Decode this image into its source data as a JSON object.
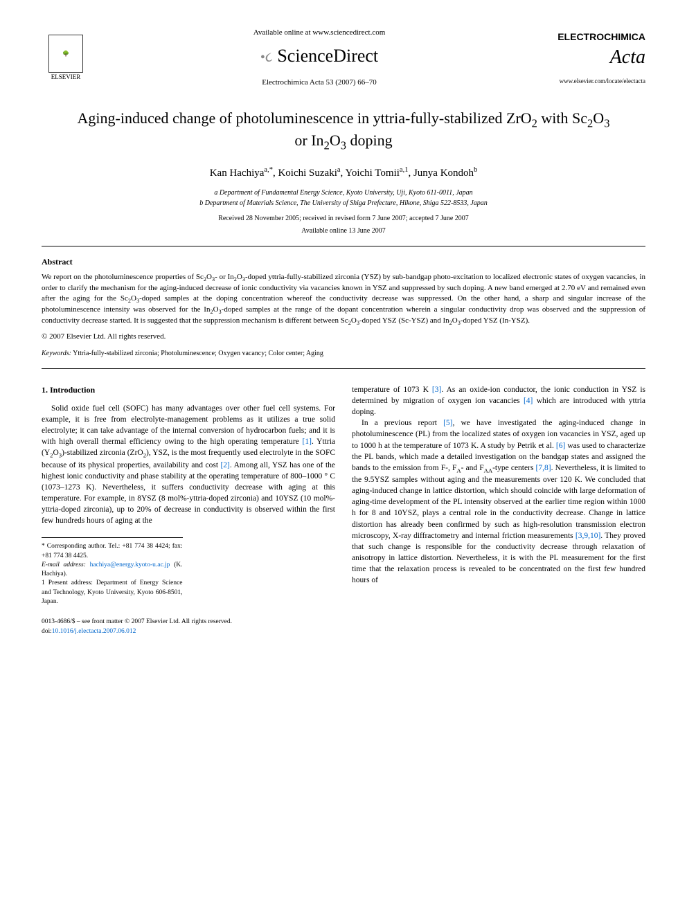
{
  "header": {
    "elsevier_label": "ELSEVIER",
    "available_online": "Available online at www.sciencedirect.com",
    "sciencedirect": "ScienceDirect",
    "journal_ref": "Electrochimica Acta 53 (2007) 66–70",
    "brand_top": "ELECTROCHIMICA",
    "brand_script": "Acta",
    "journal_url": "www.elsevier.com/locate/electacta"
  },
  "paper": {
    "title_html": "Aging-induced change of photoluminescence in yttria-fully-stabilized ZrO<sub>2</sub> with Sc<sub>2</sub>O<sub>3</sub> or In<sub>2</sub>O<sub>3</sub> doping",
    "authors_html": "Kan Hachiya<sup>a,*</sup>, Koichi Suzaki<sup>a</sup>, Yoichi Tomii<sup>a,1</sup>, Junya Kondoh<sup>b</sup>",
    "affil_a": "a Department of Fundamental Energy Science, Kyoto University, Uji, Kyoto 611-0011, Japan",
    "affil_b": "b Department of Materials Science, The University of Shiga Prefecture, Hikone, Shiga 522-8533, Japan",
    "received": "Received 28 November 2005; received in revised form 7 June 2007; accepted 7 June 2007",
    "available": "Available online 13 June 2007"
  },
  "abstract": {
    "heading": "Abstract",
    "text_html": "We report on the photoluminescence properties of Sc<sub>2</sub>O<sub>3</sub>- or In<sub>2</sub>O<sub>3</sub>-doped yttria-fully-stabilized zirconia (YSZ) by sub-bandgap photo-excitation to localized electronic states of oxygen vacancies, in order to clarify the mechanism for the aging-induced decrease of ionic conductivity via vacancies known in YSZ and suppressed by such doping. A new band emerged at 2.70 eV and remained even after the aging for the Sc<sub>2</sub>O<sub>3</sub>-doped samples at the doping concentration whereof the conductivity decrease was suppressed. On the other hand, a sharp and singular increase of the photoluminescence intensity was observed for the In<sub>2</sub>O<sub>3</sub>-doped samples at the range of the dopant concentration wherein a singular conductivity drop was observed and the suppression of conductivity decrease started. It is suggested that the suppression mechanism is different between Sc<sub>2</sub>O<sub>3</sub>-doped YSZ (Sc-YSZ) and In<sub>2</sub>O<sub>3</sub>-doped YSZ (In-YSZ).",
    "copyright": "© 2007 Elsevier Ltd. All rights reserved.",
    "keywords_label": "Keywords:",
    "keywords": " Yttria-fully-stabilized zirconia; Photoluminescence; Oxygen vacancy; Color center; Aging"
  },
  "intro": {
    "heading": "1. Introduction",
    "col1_p1_html": "Solid oxide fuel cell (SOFC) has many advantages over other fuel cell systems. For example, it is free from electrolyte-management problems as it utilizes a true solid electrolyte; it can take advantage of the internal conversion of hydrocarbon fuels; and it is with high overall thermal efficiency owing to the high operating temperature <span class=\"ref-link\">[1]</span>. Yttria (Y<sub>2</sub>O<sub>3</sub>)-stabilized zirconia (ZrO<sub>2</sub>), YSZ, is the most frequently used electrolyte in the SOFC because of its physical properties, availability and cost <span class=\"ref-link\">[2]</span>. Among all, YSZ has one of the highest ionic conductivity and phase stability at the operating temperature of 800–1000 ° C (1073–1273 K). Nevertheless, it suffers conductivity decrease with aging at this temperature. For example, in 8YSZ (8 mol%-yttria-doped zirconia) and 10YSZ (10 mol%-yttria-doped zirconia), up to 20% of decrease in conductivity is observed within the first few hundreds hours of aging at the",
    "col2_p1_html": "temperature of 1073 K <span class=\"ref-link\">[3]</span>. As an oxide-ion conductor, the ionic conduction in YSZ is determined by migration of oxygen ion vacancies <span class=\"ref-link\">[4]</span> which are introduced with yttria doping.",
    "col2_p2_html": "In a previous report <span class=\"ref-link\">[5]</span>, we have investigated the aging-induced change in photoluminescence (PL) from the localized states of oxygen ion vacancies in YSZ, aged up to 1000 h at the temperature of 1073 K. A study by Petrik et al. <span class=\"ref-link\">[6]</span> was used to characterize the PL bands, which made a detailed investigation on the bandgap states and assigned the bands to the emission from F-, F<sub>A</sub>- and F<sub>AA</sub>-type centers <span class=\"ref-link\">[7,8]</span>. Nevertheless, it is limited to the 9.5YSZ samples without aging and the measurements over 120 K. We concluded that aging-induced change in lattice distortion, which should coincide with large deformation of aging-time development of the PL intensity observed at the earlier time region within 1000 h for 8 and 10YSZ, plays a central role in the conductivity decrease. Change in lattice distortion has already been confirmed by such as high-resolution transmission electron microscopy, X-ray diffractometry and internal friction measurements <span class=\"ref-link\">[3,9,10]</span>. They proved that such change is responsible for the conductivity decrease through relaxation of anisotropy in lattice distortion. Nevertheless, it is with the PL measurement for the first time that the relaxation process is revealed to be concentrated on the first few hundred hours of"
  },
  "footnotes": {
    "corr": "* Corresponding author. Tel.: +81 774 38 4424; fax: +81 774 38 4425.",
    "email_label": "E-mail address:",
    "email": "hachiya@energy.kyoto-u.ac.jp",
    "email_attr": "(K. Hachiya).",
    "present": "1 Present address: Department of Energy Science and Technology, Kyoto University, Kyoto 606-8501, Japan."
  },
  "footer": {
    "issn": "0013-4686/$ – see front matter © 2007 Elsevier Ltd. All rights reserved.",
    "doi_label": "doi:",
    "doi": "10.1016/j.electacta.2007.06.012"
  }
}
